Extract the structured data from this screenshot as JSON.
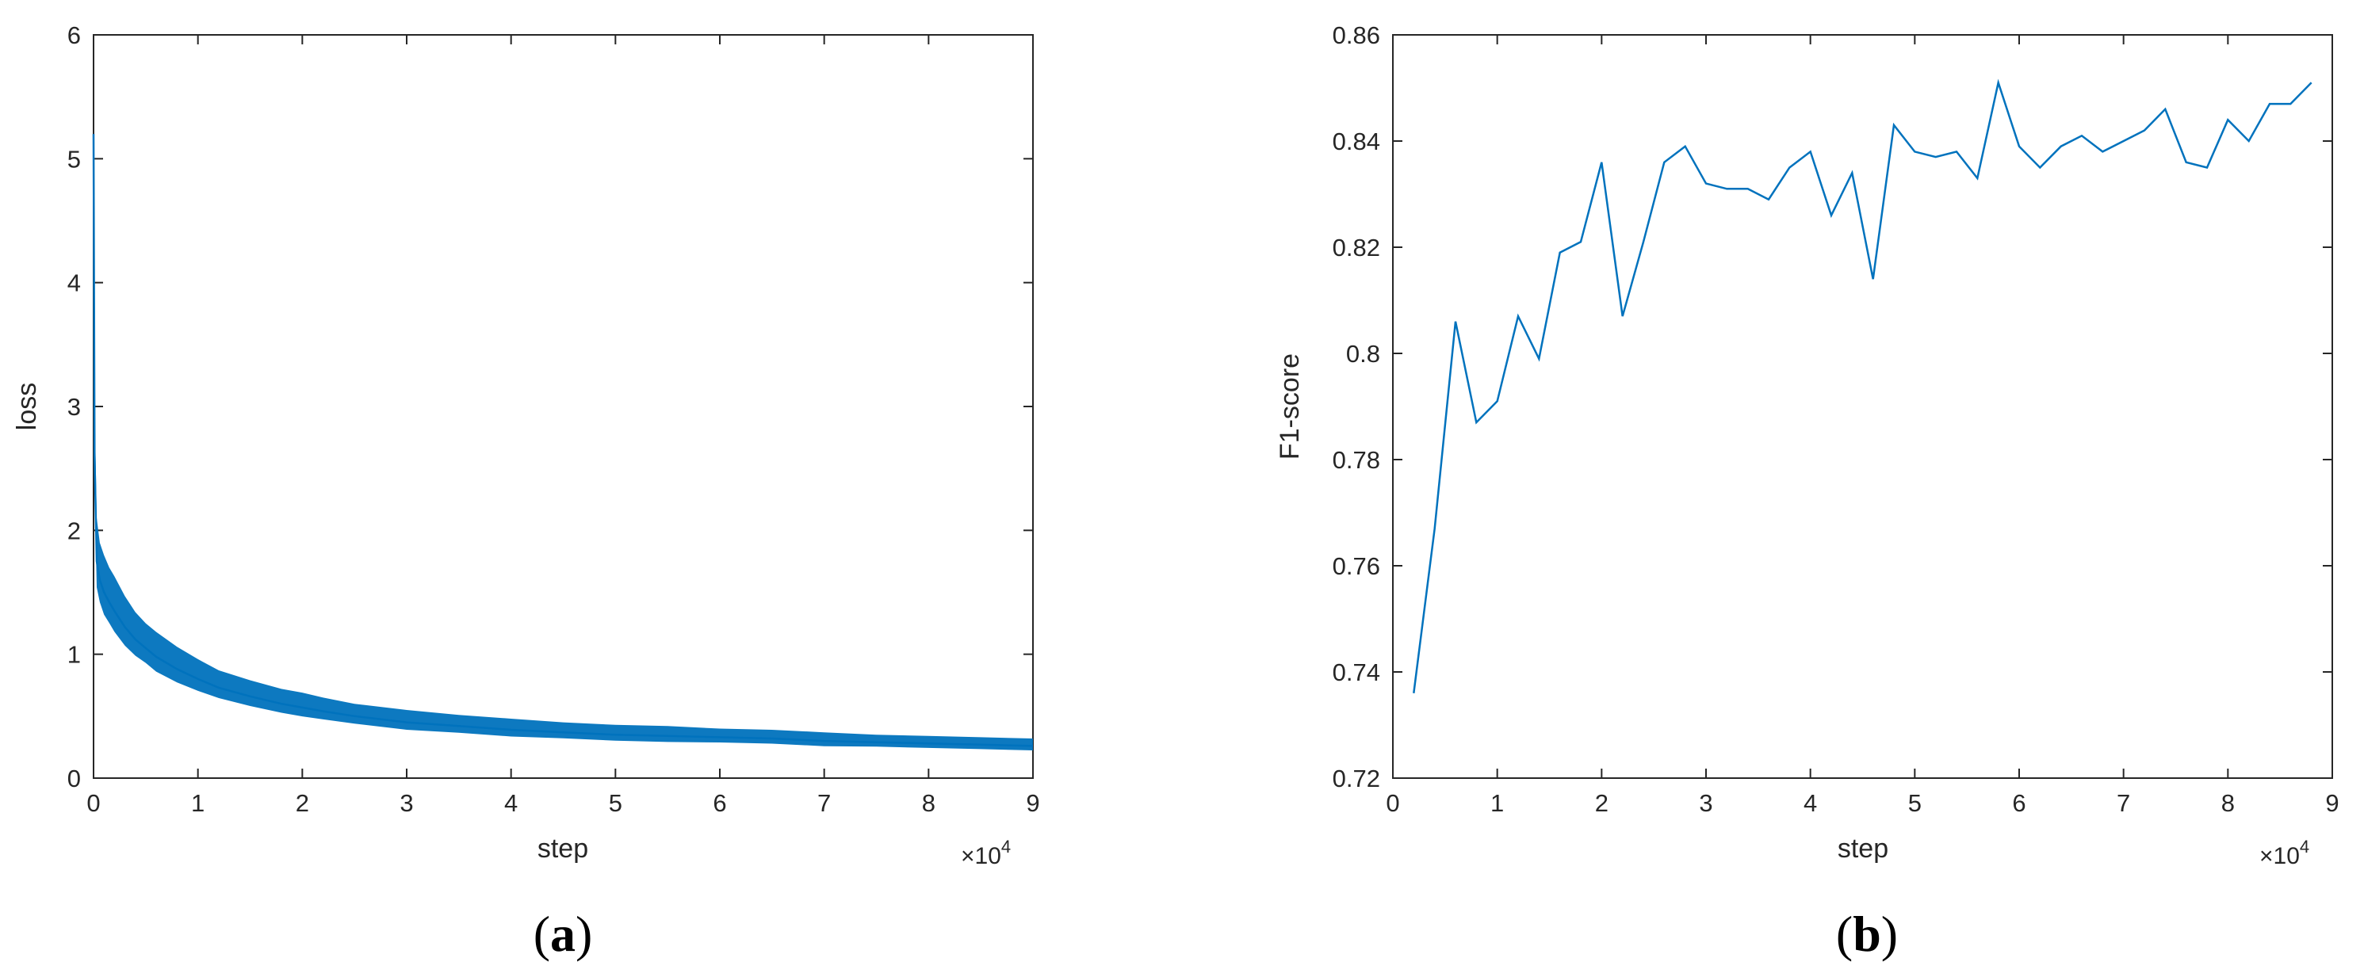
{
  "chart_data": [
    {
      "type": "line",
      "panel_label": {
        "open": "(",
        "letter": "a",
        "close": ")"
      },
      "xlabel": "step",
      "ylabel": "loss",
      "x_multiplier": {
        "base": "×10",
        "exponent": "4"
      },
      "xlim": [
        0,
        9
      ],
      "ylim": [
        0,
        6
      ],
      "x_ticks": [
        0,
        1,
        2,
        3,
        4,
        5,
        6,
        7,
        8,
        9
      ],
      "y_ticks": [
        0,
        1,
        2,
        3,
        4,
        5,
        6
      ],
      "grid": false,
      "line_color": "#0072BD",
      "x": [
        0,
        0.01,
        0.03,
        0.06,
        0.1,
        0.15,
        0.2,
        0.3,
        0.4,
        0.5,
        0.6,
        0.8,
        1.0,
        1.2,
        1.5,
        1.8,
        2.0,
        2.2,
        2.5,
        3.0,
        3.5,
        4.0,
        4.5,
        5.0,
        5.5,
        6.0,
        6.5,
        7.0,
        7.5,
        8.0,
        8.5,
        9.0
      ],
      "y": [
        5.2,
        2.6,
        1.75,
        1.6,
        1.5,
        1.42,
        1.35,
        1.22,
        1.12,
        1.05,
        0.98,
        0.88,
        0.8,
        0.73,
        0.66,
        0.6,
        0.57,
        0.54,
        0.5,
        0.45,
        0.42,
        0.39,
        0.37,
        0.35,
        0.34,
        0.33,
        0.32,
        0.3,
        0.29,
        0.28,
        0.27,
        0.26
      ],
      "noise_band": [
        0.05,
        0.45,
        0.35,
        0.3,
        0.3,
        0.28,
        0.28,
        0.25,
        0.22,
        0.2,
        0.2,
        0.18,
        0.16,
        0.14,
        0.13,
        0.12,
        0.12,
        0.11,
        0.1,
        0.1,
        0.09,
        0.09,
        0.08,
        0.08,
        0.08,
        0.07,
        0.07,
        0.07,
        0.06,
        0.06,
        0.06,
        0.06
      ]
    },
    {
      "type": "line",
      "panel_label": {
        "open": "(",
        "letter": "b",
        "close": ")"
      },
      "xlabel": "step",
      "ylabel": "F1-score",
      "x_multiplier": {
        "base": "×10",
        "exponent": "4"
      },
      "xlim": [
        0,
        9
      ],
      "ylim": [
        0.72,
        0.86
      ],
      "x_ticks": [
        0,
        1,
        2,
        3,
        4,
        5,
        6,
        7,
        8,
        9
      ],
      "y_ticks": [
        0.72,
        0.74,
        0.76,
        0.78,
        0.8,
        0.82,
        0.84,
        0.86
      ],
      "y_tick_labels": [
        "0.72",
        "0.74",
        "0.76",
        "0.78",
        "0.8",
        "0.82",
        "0.84",
        "0.86"
      ],
      "grid": false,
      "line_color": "#0072BD",
      "x": [
        0.2,
        0.4,
        0.6,
        0.8,
        1.0,
        1.2,
        1.4,
        1.6,
        1.8,
        2.0,
        2.2,
        2.4,
        2.6,
        2.8,
        3.0,
        3.2,
        3.4,
        3.6,
        3.8,
        4.0,
        4.2,
        4.4,
        4.6,
        4.8,
        5.0,
        5.2,
        5.4,
        5.6,
        5.8,
        6.0,
        6.2,
        6.4,
        6.6,
        6.8,
        7.0,
        7.2,
        7.4,
        7.6,
        7.8,
        8.0,
        8.2,
        8.4,
        8.6,
        8.8
      ],
      "y": [
        0.736,
        0.767,
        0.806,
        0.787,
        0.791,
        0.807,
        0.799,
        0.819,
        0.821,
        0.836,
        0.807,
        0.821,
        0.836,
        0.839,
        0.832,
        0.831,
        0.831,
        0.829,
        0.835,
        0.838,
        0.826,
        0.834,
        0.814,
        0.843,
        0.838,
        0.837,
        0.838,
        0.833,
        0.851,
        0.839,
        0.835,
        0.839,
        0.841,
        0.838,
        0.84,
        0.842,
        0.846,
        0.836,
        0.835,
        0.844,
        0.84,
        0.847,
        0.847,
        0.851
      ]
    }
  ]
}
